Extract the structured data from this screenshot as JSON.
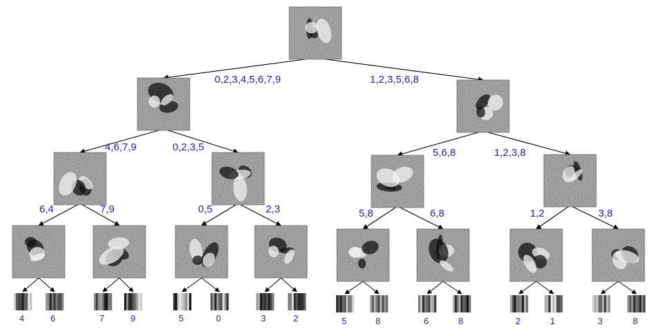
{
  "colors": {
    "label": "#1a1adc",
    "edge": "#000000",
    "filter_mid": "#8a8a8a"
  },
  "edge_labels": {
    "root_left": "0,2,3,4,5,6,7,9",
    "root_right": "1,2,3,5,6,8",
    "l1_left_left": "4,6,7,9",
    "l1_left_right": "0,2,3,5",
    "l1_right_left": "5,6,8",
    "l1_right_right": "1,2,3,8",
    "n467_left": "6,4",
    "n467_right": "7,9",
    "n0235_left": "0,5",
    "n0235_right": "2,3",
    "n568_left": "5,8",
    "n568_right": "6,8",
    "n1238_left": "1,2",
    "n1238_right": "3,8"
  },
  "leaf_labels": [
    "4",
    "6",
    "7",
    "9",
    "5",
    "0",
    "3",
    "2",
    "5",
    "8",
    "6",
    "8",
    "2",
    "1",
    "3",
    "8"
  ]
}
